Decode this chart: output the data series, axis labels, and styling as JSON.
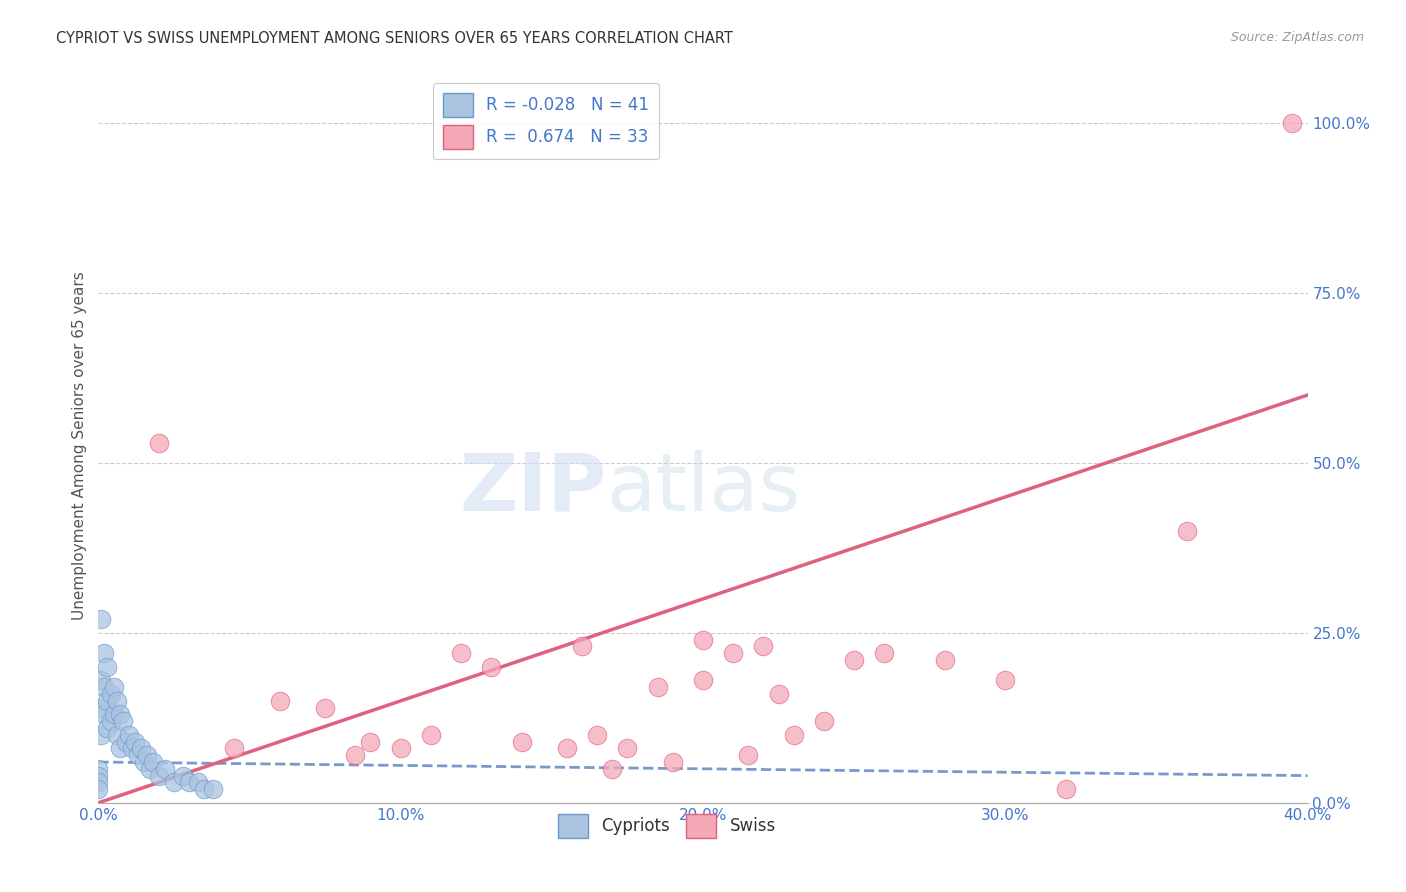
{
  "title": "CYPRIOT VS SWISS UNEMPLOYMENT AMONG SENIORS OVER 65 YEARS CORRELATION CHART",
  "source": "Source: ZipAtlas.com",
  "ylabel": "Unemployment Among Seniors over 65 years",
  "legend_label_1": "Cypriots",
  "legend_label_2": "Swiss",
  "R1": -0.028,
  "N1": 41,
  "R2": 0.674,
  "N2": 33,
  "color_blue": "#aac4e0",
  "color_pink": "#f4a8b8",
  "color_blue_edge": "#6699cc",
  "color_pink_edge": "#e06080",
  "color_blue_line": "#7799cc",
  "color_pink_line": "#e06080",
  "xlim": [
    0.0,
    0.4
  ],
  "ylim": [
    0.0,
    1.05
  ],
  "xticks": [
    0.0,
    0.1,
    0.2,
    0.3,
    0.4
  ],
  "xtick_labels": [
    "0.0%",
    "10.0%",
    "20.0%",
    "30.0%",
    "40.0%"
  ],
  "yticks_right": [
    0.0,
    0.25,
    0.5,
    0.75,
    1.0
  ],
  "ytick_labels_right": [
    "0.0%",
    "25.0%",
    "50.0%",
    "75.0%",
    "100.0%"
  ],
  "blue_x": [
    0.0,
    0.0,
    0.0,
    0.001,
    0.001,
    0.001,
    0.001,
    0.002,
    0.002,
    0.002,
    0.003,
    0.003,
    0.003,
    0.004,
    0.004,
    0.005,
    0.005,
    0.006,
    0.006,
    0.007,
    0.007,
    0.008,
    0.009,
    0.01,
    0.011,
    0.012,
    0.013,
    0.014,
    0.015,
    0.016,
    0.017,
    0.018,
    0.02,
    0.022,
    0.025,
    0.028,
    0.03,
    0.033,
    0.035,
    0.038,
    0.0
  ],
  "blue_y": [
    0.05,
    0.04,
    0.03,
    0.27,
    0.18,
    0.14,
    0.1,
    0.22,
    0.17,
    0.13,
    0.2,
    0.15,
    0.11,
    0.16,
    0.12,
    0.17,
    0.13,
    0.15,
    0.1,
    0.13,
    0.08,
    0.12,
    0.09,
    0.1,
    0.08,
    0.09,
    0.07,
    0.08,
    0.06,
    0.07,
    0.05,
    0.06,
    0.04,
    0.05,
    0.03,
    0.04,
    0.03,
    0.03,
    0.02,
    0.02,
    0.02
  ],
  "pink_x": [
    0.02,
    0.045,
    0.06,
    0.075,
    0.085,
    0.09,
    0.1,
    0.11,
    0.12,
    0.13,
    0.14,
    0.155,
    0.16,
    0.165,
    0.17,
    0.175,
    0.185,
    0.19,
    0.2,
    0.2,
    0.21,
    0.215,
    0.22,
    0.225,
    0.23,
    0.24,
    0.25,
    0.26,
    0.28,
    0.3,
    0.32,
    0.36,
    0.395
  ],
  "pink_y": [
    0.53,
    0.08,
    0.15,
    0.14,
    0.07,
    0.09,
    0.08,
    0.1,
    0.22,
    0.2,
    0.09,
    0.08,
    0.23,
    0.1,
    0.05,
    0.08,
    0.17,
    0.06,
    0.18,
    0.24,
    0.22,
    0.07,
    0.23,
    0.16,
    0.1,
    0.12,
    0.21,
    0.22,
    0.21,
    0.18,
    0.02,
    0.4,
    1.0
  ],
  "pink_line_x": [
    0.0,
    0.4
  ],
  "pink_line_y": [
    0.0,
    0.6
  ],
  "blue_line_x": [
    0.0,
    0.4
  ],
  "blue_line_y": [
    0.06,
    0.04
  ],
  "watermark_zip": "ZIP",
  "watermark_atlas": "atlas",
  "background_color": "#ffffff",
  "grid_color": "#cccccc",
  "title_color": "#333333",
  "source_color": "#999999",
  "tick_color": "#4477cc",
  "ylabel_color": "#555555"
}
